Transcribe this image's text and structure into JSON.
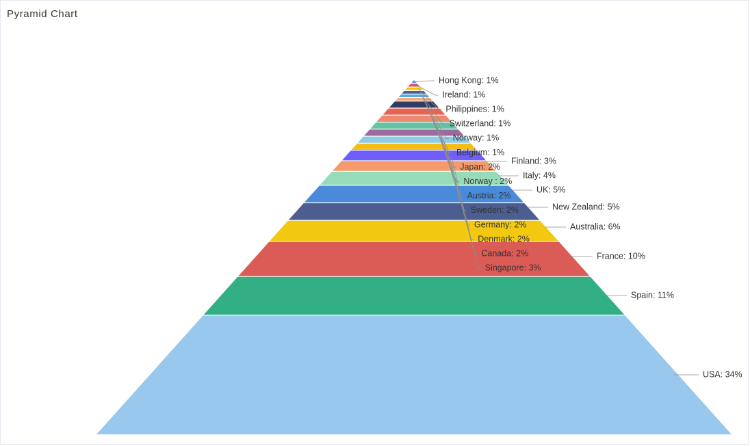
{
  "title": "Pyramid Chart",
  "chart_data": {
    "type": "pyramid",
    "title": "Pyramid Chart",
    "unit": "%",
    "categories": [
      "Hong Kong",
      "Ireland",
      "Philippines",
      "Switzerland",
      "Norway",
      "Belgium",
      "Japan",
      "Norway ",
      "Austria",
      "Sweden",
      "Germany",
      "Denmark",
      "Canada",
      "Singapore",
      "Finland",
      "Italy",
      "UK",
      "New Zealand",
      "Australia",
      "France",
      "Spain",
      "USA"
    ],
    "values": [
      1,
      1,
      1,
      1,
      1,
      1,
      2,
      2,
      2,
      2,
      2,
      2,
      2,
      3,
      3,
      4,
      5,
      5,
      6,
      10,
      11,
      34
    ],
    "labels": [
      "Hong Kong: 1%",
      "Ireland: 1%",
      "Philippines: 1%",
      "Switzerland: 1%",
      "Norway: 1%",
      "Belgium: 1%",
      "Japan: 2%",
      "Norway : 2%",
      "Austria: 2%",
      "Sweden: 2%",
      "Germany: 2%",
      "Denmark: 2%",
      "Canada: 2%",
      "Singapore: 3%",
      "Finland: 3%",
      "Italy: 4%",
      "UK: 5%",
      "New Zealand: 5%",
      "Australia: 6%",
      "France: 10%",
      "Spain: 11%",
      "USA: 34%"
    ],
    "colors": [
      "#5B8FF9",
      "#DC5A54",
      "#F2C811",
      "#4A5D8F",
      "#5AA9E6",
      "#F4A46C",
      "#2E3C66",
      "#E86452",
      "#EB8A70",
      "#66C2A5",
      "#9E6A9E",
      "#8ECBE6",
      "#F6BD16",
      "#6F5EF9",
      "#F59A6A",
      "#96DCB9",
      "#4A8ADB",
      "#4B5E8F",
      "#F2C811",
      "#DB5B56",
      "#32AF85",
      "#98C8EE"
    ]
  }
}
